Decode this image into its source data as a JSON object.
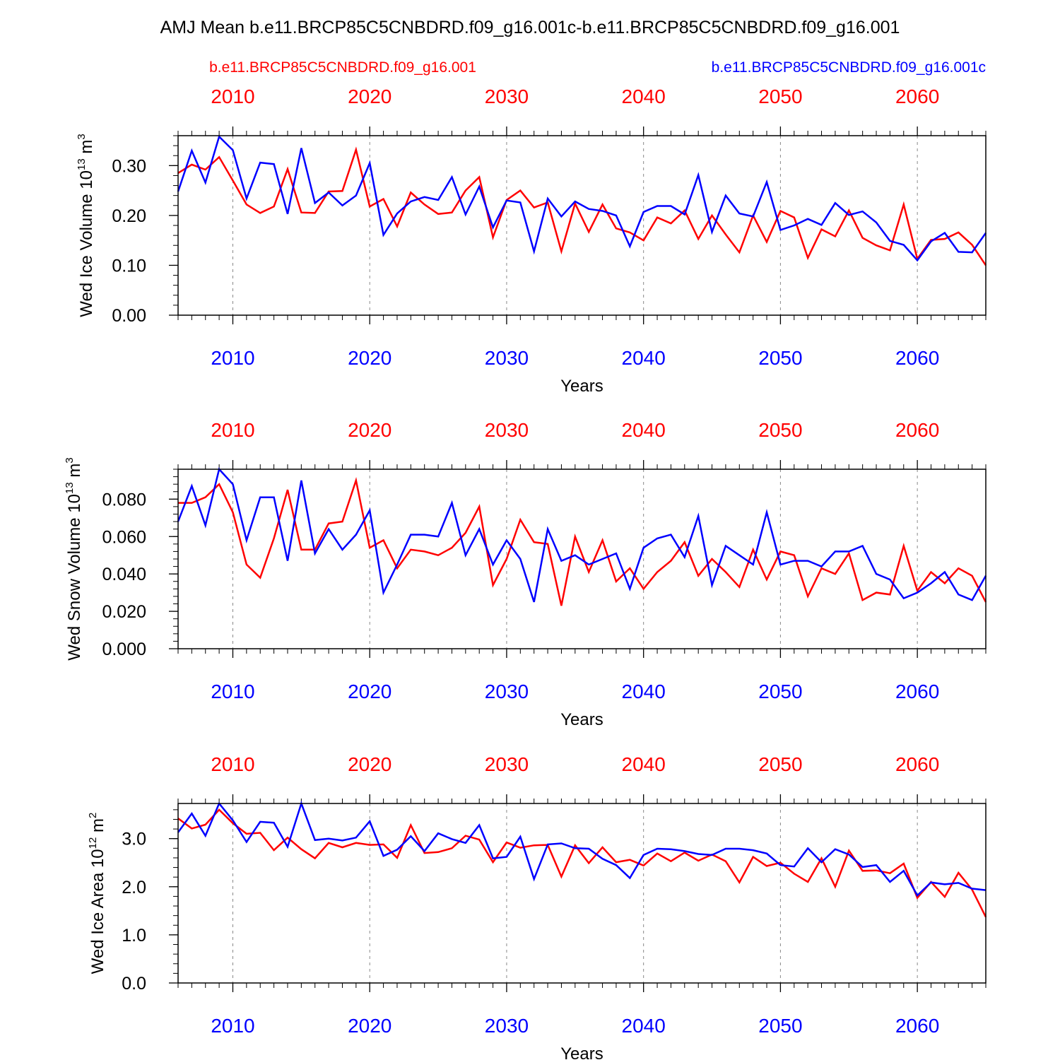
{
  "title": "AMJ Mean b.e11.BRCP85C5CNBDRD.f09_g16.001c-b.e11.BRCP85C5CNBDRD.f09_g16.001",
  "legend": {
    "left": "b.e11.BRCP85C5CNBDRD.f09_g16.001",
    "right": "b.e11.BRCP85C5CNBDRD.f09_g16.001c"
  },
  "colors": {
    "red_series": "#ff0000",
    "blue_series": "#0000ff",
    "axis": "#000000",
    "grid": "#888888"
  },
  "chart_data": [
    {
      "type": "line",
      "ylabel": "Wed Ice Volume",
      "yunit_base": "10",
      "yunit_exp": "13",
      "yunit_unit": "m",
      "yunit_unit_exp": "3",
      "xlabel": "Years",
      "xlim": [
        2006,
        2065
      ],
      "ylim": [
        0,
        0.36
      ],
      "xticks": [
        2010,
        2020,
        2030,
        2040,
        2050,
        2060
      ],
      "xtick_labels": [
        "2010",
        "2020",
        "2030",
        "2040",
        "2050",
        "2060"
      ],
      "yticks": [
        0,
        0.1,
        0.2,
        0.3
      ],
      "ytick_labels": [
        "0.00",
        "0.10",
        "0.20",
        "0.30"
      ],
      "yminor_step": 0.02,
      "x": [
        2006,
        2007,
        2008,
        2009,
        2010,
        2011,
        2012,
        2013,
        2014,
        2015,
        2016,
        2017,
        2018,
        2019,
        2020,
        2021,
        2022,
        2023,
        2024,
        2025,
        2026,
        2027,
        2028,
        2029,
        2030,
        2031,
        2032,
        2033,
        2034,
        2035,
        2036,
        2037,
        2038,
        2039,
        2040,
        2041,
        2042,
        2043,
        2044,
        2045,
        2046,
        2047,
        2048,
        2049,
        2050,
        2051,
        2052,
        2053,
        2054,
        2055,
        2056,
        2057,
        2058,
        2059,
        2060,
        2061,
        2062,
        2063,
        2064,
        2065
      ],
      "series": [
        {
          "name": "b.e11.BRCP85C5CNBDRD.f09_g16.001",
          "color": "#ff0000",
          "values": [
            0.285,
            0.302,
            0.292,
            0.317,
            0.27,
            0.222,
            0.205,
            0.218,
            0.293,
            0.206,
            0.205,
            0.248,
            0.249,
            0.332,
            0.218,
            0.233,
            0.178,
            0.246,
            0.222,
            0.203,
            0.206,
            0.25,
            0.277,
            0.156,
            0.231,
            0.25,
            0.216,
            0.226,
            0.128,
            0.224,
            0.167,
            0.222,
            0.174,
            0.166,
            0.15,
            0.196,
            0.184,
            0.21,
            0.153,
            0.2,
            0.162,
            0.126,
            0.2,
            0.147,
            0.209,
            0.196,
            0.115,
            0.172,
            0.158,
            0.21,
            0.155,
            0.14,
            0.13,
            0.222,
            0.113,
            0.151,
            0.153,
            0.166,
            0.141,
            0.1
          ]
        },
        {
          "name": "b.e11.BRCP85C5CNBDRD.f09_g16.001c",
          "color": "#0000ff",
          "values": [
            0.248,
            0.33,
            0.266,
            0.358,
            0.331,
            0.234,
            0.306,
            0.303,
            0.203,
            0.335,
            0.225,
            0.246,
            0.22,
            0.24,
            0.305,
            0.161,
            0.204,
            0.228,
            0.237,
            0.231,
            0.277,
            0.202,
            0.258,
            0.176,
            0.23,
            0.226,
            0.128,
            0.234,
            0.198,
            0.228,
            0.213,
            0.209,
            0.2,
            0.138,
            0.207,
            0.219,
            0.219,
            0.202,
            0.281,
            0.167,
            0.24,
            0.204,
            0.198,
            0.267,
            0.171,
            0.18,
            0.193,
            0.181,
            0.225,
            0.201,
            0.208,
            0.186,
            0.149,
            0.141,
            0.11,
            0.148,
            0.165,
            0.127,
            0.126,
            0.165
          ]
        }
      ]
    },
    {
      "type": "line",
      "ylabel": "Wed Snow Volume",
      "yunit_base": "10",
      "yunit_exp": "13",
      "yunit_unit": "m",
      "yunit_unit_exp": "3",
      "xlabel": "Years",
      "xlim": [
        2006,
        2065
      ],
      "ylim": [
        0,
        0.096
      ],
      "xticks": [
        2010,
        2020,
        2030,
        2040,
        2050,
        2060
      ],
      "xtick_labels": [
        "2010",
        "2020",
        "2030",
        "2040",
        "2050",
        "2060"
      ],
      "yticks": [
        0,
        0.02,
        0.04,
        0.06,
        0.08
      ],
      "ytick_labels": [
        "0.000",
        "0.020",
        "0.040",
        "0.060",
        "0.080"
      ],
      "yminor_step": 0.004,
      "x": [
        2006,
        2007,
        2008,
        2009,
        2010,
        2011,
        2012,
        2013,
        2014,
        2015,
        2016,
        2017,
        2018,
        2019,
        2020,
        2021,
        2022,
        2023,
        2024,
        2025,
        2026,
        2027,
        2028,
        2029,
        2030,
        2031,
        2032,
        2033,
        2034,
        2035,
        2036,
        2037,
        2038,
        2039,
        2040,
        2041,
        2042,
        2043,
        2044,
        2045,
        2046,
        2047,
        2048,
        2049,
        2050,
        2051,
        2052,
        2053,
        2054,
        2055,
        2056,
        2057,
        2058,
        2059,
        2060,
        2061,
        2062,
        2063,
        2064,
        2065
      ],
      "series": [
        {
          "name": "b.e11.BRCP85C5CNBDRD.f09_g16.001",
          "color": "#ff0000",
          "values": [
            0.078,
            0.078,
            0.081,
            0.088,
            0.073,
            0.045,
            0.038,
            0.059,
            0.085,
            0.053,
            0.053,
            0.067,
            0.068,
            0.09,
            0.054,
            0.058,
            0.043,
            0.053,
            0.052,
            0.05,
            0.054,
            0.062,
            0.076,
            0.034,
            0.048,
            0.069,
            0.057,
            0.056,
            0.023,
            0.06,
            0.041,
            0.058,
            0.036,
            0.043,
            0.032,
            0.041,
            0.047,
            0.057,
            0.039,
            0.048,
            0.041,
            0.033,
            0.053,
            0.037,
            0.052,
            0.05,
            0.028,
            0.043,
            0.04,
            0.051,
            0.026,
            0.03,
            0.029,
            0.055,
            0.031,
            0.041,
            0.035,
            0.043,
            0.039,
            0.025
          ]
        },
        {
          "name": "b.e11.BRCP85C5CNBDRD.f09_g16.001c",
          "color": "#0000ff",
          "values": [
            0.068,
            0.087,
            0.066,
            0.096,
            0.088,
            0.058,
            0.081,
            0.081,
            0.047,
            0.09,
            0.051,
            0.064,
            0.053,
            0.061,
            0.074,
            0.03,
            0.045,
            0.061,
            0.061,
            0.06,
            0.078,
            0.05,
            0.064,
            0.045,
            0.058,
            0.048,
            0.025,
            0.064,
            0.047,
            0.05,
            0.045,
            0.048,
            0.051,
            0.032,
            0.054,
            0.059,
            0.061,
            0.049,
            0.071,
            0.034,
            0.055,
            0.05,
            0.045,
            0.073,
            0.045,
            0.047,
            0.047,
            0.044,
            0.052,
            0.052,
            0.055,
            0.04,
            0.037,
            0.027,
            0.03,
            0.035,
            0.041,
            0.029,
            0.026,
            0.039
          ]
        }
      ]
    },
    {
      "type": "line",
      "ylabel": "Wed Ice Area",
      "yunit_base": "10",
      "yunit_exp": "12",
      "yunit_unit": "m",
      "yunit_unit_exp": "2",
      "xlabel": "Years",
      "xlim": [
        2006,
        2065
      ],
      "ylim": [
        0,
        3.73
      ],
      "xticks": [
        2010,
        2020,
        2030,
        2040,
        2050,
        2060
      ],
      "xtick_labels": [
        "2010",
        "2020",
        "2030",
        "2040",
        "2050",
        "2060"
      ],
      "yticks": [
        0,
        1,
        2,
        3
      ],
      "ytick_labels": [
        "0.0",
        "1.0",
        "2.0",
        "3.0"
      ],
      "yminor_step": 0.2,
      "x": [
        2006,
        2007,
        2008,
        2009,
        2010,
        2011,
        2012,
        2013,
        2014,
        2015,
        2016,
        2017,
        2018,
        2019,
        2020,
        2021,
        2022,
        2023,
        2024,
        2025,
        2026,
        2027,
        2028,
        2029,
        2030,
        2031,
        2032,
        2033,
        2034,
        2035,
        2036,
        2037,
        2038,
        2039,
        2040,
        2041,
        2042,
        2043,
        2044,
        2045,
        2046,
        2047,
        2048,
        2049,
        2050,
        2051,
        2052,
        2053,
        2054,
        2055,
        2056,
        2057,
        2058,
        2059,
        2060,
        2061,
        2062,
        2063,
        2064,
        2065
      ],
      "series": [
        {
          "name": "b.e11.BRCP85C5CNBDRD.f09_g16.001",
          "color": "#ff0000",
          "values": [
            3.42,
            3.21,
            3.29,
            3.6,
            3.32,
            3.1,
            3.12,
            2.76,
            3.02,
            2.78,
            2.59,
            2.91,
            2.82,
            2.91,
            2.87,
            2.88,
            2.6,
            3.28,
            2.7,
            2.72,
            2.8,
            3.06,
            2.98,
            2.51,
            2.92,
            2.81,
            2.86,
            2.87,
            2.21,
            2.86,
            2.49,
            2.82,
            2.51,
            2.56,
            2.44,
            2.69,
            2.53,
            2.71,
            2.54,
            2.67,
            2.53,
            2.09,
            2.62,
            2.43,
            2.5,
            2.27,
            2.1,
            2.59,
            2.0,
            2.75,
            2.33,
            2.34,
            2.28,
            2.48,
            1.77,
            2.1,
            1.79,
            2.29,
            1.94,
            1.37
          ]
        },
        {
          "name": "b.e11.BRCP85C5CNBDRD.f09_g16.001c",
          "color": "#0000ff",
          "values": [
            3.13,
            3.52,
            3.06,
            3.73,
            3.38,
            2.93,
            3.35,
            3.33,
            2.83,
            3.73,
            2.97,
            3.0,
            2.96,
            3.02,
            3.36,
            2.64,
            2.77,
            3.05,
            2.74,
            3.11,
            2.99,
            2.91,
            3.28,
            2.59,
            2.62,
            3.04,
            2.16,
            2.88,
            2.9,
            2.8,
            2.79,
            2.58,
            2.45,
            2.18,
            2.66,
            2.79,
            2.78,
            2.74,
            2.68,
            2.66,
            2.79,
            2.79,
            2.76,
            2.69,
            2.45,
            2.42,
            2.8,
            2.51,
            2.78,
            2.67,
            2.41,
            2.45,
            2.1,
            2.33,
            1.82,
            2.09,
            2.05,
            2.08,
            1.96,
            1.93
          ]
        }
      ]
    }
  ]
}
